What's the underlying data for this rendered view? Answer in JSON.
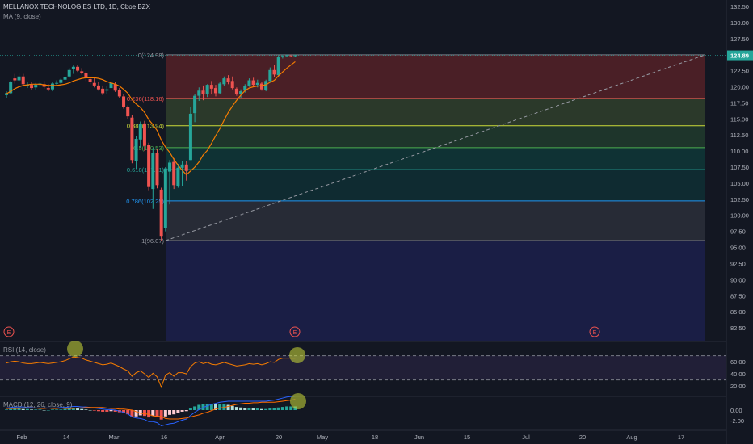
{
  "header": {
    "symbol": "MELLANOX TECHNOLOGIES LTD, 1D, Cboe BZX",
    "indicator": "MA (9, close)"
  },
  "rsi_label": "RSI (14, close)",
  "macd_label": "MACD (12, 26, close, 9)",
  "earnings_marker": "E",
  "colors": {
    "background": "#131722",
    "up": "#26a69a",
    "down": "#ef5350",
    "ma": "#f57c00",
    "rsi_line": "#f57c00",
    "last_price_badge": "#26a69a",
    "highlight": "#cddc39"
  },
  "chart_data": {
    "type": "candlestick",
    "y_axis_ticks": [
      "132.50",
      "130.00",
      "127.50",
      "125.00",
      "122.50",
      "120.00",
      "117.50",
      "115.00",
      "112.50",
      "110.00",
      "107.50",
      "105.00",
      "102.50",
      "100.00",
      "97.50",
      "95.00",
      "92.50",
      "90.00",
      "87.50",
      "85.00",
      "82.50"
    ],
    "y_range": [
      80.5,
      133.5
    ],
    "x_axis_labels": [
      "Feb",
      "14",
      "Mar",
      "16",
      "Apr",
      "20",
      "May",
      "18",
      "Jun",
      "15",
      "Jul",
      "20",
      "Aug",
      "17"
    ],
    "last_price": "124.89",
    "fibonacci": [
      {
        "label": "0(124.98)",
        "value": 124.98
      },
      {
        "label": "0.236(118.16)",
        "value": 118.16
      },
      {
        "label": "0.382(113.94)",
        "value": 113.94
      },
      {
        "label": "0.5(110.53)",
        "value": 110.53
      },
      {
        "label": "0.618(107.11)",
        "value": 107.11
      },
      {
        "label": "0.786(102.25)",
        "value": 102.25
      },
      {
        "label": "1(96.07)",
        "value": 96.07
      }
    ],
    "candles": [
      [
        118.7,
        119.3,
        118.3,
        119.0
      ],
      [
        119.0,
        120.9,
        118.8,
        120.7
      ],
      [
        121.3,
        122.0,
        120.5,
        121.0
      ],
      [
        121.0,
        122.1,
        120.8,
        121.6
      ],
      [
        121.6,
        122.0,
        120.2,
        120.4
      ],
      [
        120.3,
        120.8,
        119.8,
        120.3
      ],
      [
        120.3,
        120.7,
        119.5,
        119.8
      ],
      [
        119.9,
        120.6,
        119.5,
        120.3
      ],
      [
        120.3,
        120.9,
        119.9,
        120.5
      ],
      [
        120.4,
        120.9,
        119.7,
        120.0
      ],
      [
        119.8,
        120.4,
        119.3,
        119.6
      ],
      [
        119.6,
        120.8,
        119.3,
        120.5
      ],
      [
        120.5,
        121.0,
        120.1,
        120.6
      ],
      [
        120.6,
        121.3,
        120.3,
        121.1
      ],
      [
        121.1,
        121.8,
        120.8,
        121.5
      ],
      [
        121.6,
        122.9,
        121.4,
        122.6
      ],
      [
        122.7,
        123.3,
        122.0,
        123.1
      ],
      [
        123.1,
        123.4,
        122.3,
        122.5
      ],
      [
        122.4,
        122.9,
        121.9,
        122.2
      ],
      [
        122.1,
        122.4,
        120.9,
        121.4
      ],
      [
        121.2,
        121.6,
        120.4,
        120.7
      ],
      [
        120.6,
        121.4,
        119.9,
        120.2
      ],
      [
        120.2,
        120.8,
        119.4,
        119.6
      ],
      [
        119.7,
        120.2,
        118.7,
        119.0
      ],
      [
        119.4,
        120.1,
        118.9,
        119.6
      ],
      [
        119.8,
        121.2,
        119.2,
        120.6
      ],
      [
        120.4,
        120.8,
        119.2,
        119.4
      ],
      [
        119.5,
        119.8,
        118.2,
        118.5
      ],
      [
        118.5,
        118.9,
        116.6,
        116.9
      ],
      [
        116.9,
        117.1,
        115.0,
        115.4
      ],
      [
        115.2,
        115.6,
        108.1,
        108.6
      ],
      [
        108.5,
        112.4,
        107.2,
        111.9
      ],
      [
        111.8,
        114.6,
        110.5,
        114.2
      ],
      [
        114.3,
        114.7,
        110.0,
        110.8
      ],
      [
        110.9,
        111.3,
        103.9,
        104.4
      ],
      [
        104.1,
        110.5,
        101.0,
        109.7
      ],
      [
        109.7,
        110.3,
        104.2,
        104.7
      ],
      [
        104.0,
        104.3,
        96.1,
        96.8
      ],
      [
        98.0,
        107.5,
        97.5,
        107.3
      ],
      [
        106.8,
        108.6,
        101.7,
        108.2
      ],
      [
        108.3,
        108.9,
        104.1,
        104.7
      ],
      [
        104.6,
        108.0,
        104.3,
        107.4
      ],
      [
        107.4,
        108.4,
        104.6,
        107.9
      ],
      [
        107.9,
        108.5,
        105.4,
        106.9
      ],
      [
        108.6,
        116.8,
        108.6,
        115.8
      ],
      [
        115.9,
        118.9,
        114.5,
        118.6
      ],
      [
        118.6,
        119.9,
        117.8,
        119.4
      ],
      [
        119.4,
        120.2,
        117.9,
        118.9
      ],
      [
        118.9,
        120.4,
        118.4,
        120.3
      ],
      [
        120.3,
        120.9,
        118.8,
        119.7
      ],
      [
        119.8,
        120.3,
        118.5,
        119.0
      ],
      [
        119.0,
        120.8,
        118.9,
        120.5
      ],
      [
        120.4,
        121.6,
        120.1,
        121.3
      ],
      [
        121.3,
        121.8,
        120.4,
        120.8
      ],
      [
        120.9,
        121.6,
        119.6,
        119.8
      ],
      [
        119.7,
        119.9,
        118.6,
        118.9
      ],
      [
        118.9,
        119.6,
        118.2,
        119.3
      ],
      [
        119.4,
        120.4,
        119.1,
        120.1
      ],
      [
        120.1,
        121.3,
        120.0,
        121.0
      ],
      [
        121.0,
        121.4,
        120.0,
        120.3
      ],
      [
        120.3,
        121.1,
        119.9,
        120.6
      ],
      [
        120.5,
        120.8,
        119.4,
        119.6
      ],
      [
        119.5,
        121.1,
        119.3,
        120.9
      ],
      [
        120.9,
        123.0,
        120.7,
        122.6
      ],
      [
        122.6,
        123.4,
        121.5,
        121.9
      ],
      [
        121.8,
        124.9,
        121.6,
        124.7
      ],
      [
        124.7,
        125.0,
        124.4,
        124.8
      ],
      [
        124.8,
        125.0,
        124.6,
        124.9
      ],
      [
        124.9,
        125.0,
        124.7,
        124.8
      ],
      [
        124.8,
        125.0,
        124.6,
        124.89
      ]
    ],
    "ma9": [
      118.9,
      119.3,
      119.7,
      120.0,
      120.2,
      120.3,
      120.4,
      120.4,
      120.4,
      120.3,
      120.2,
      120.2,
      120.2,
      120.3,
      120.4,
      120.6,
      120.9,
      121.1,
      121.3,
      121.4,
      121.4,
      121.4,
      121.3,
      121.1,
      120.8,
      120.6,
      120.4,
      120.1,
      119.6,
      119.0,
      118.0,
      117.3,
      116.8,
      116.0,
      114.9,
      114.1,
      113.2,
      111.7,
      110.6,
      109.8,
      108.7,
      107.8,
      107.0,
      106.3,
      106.9,
      107.5,
      108.3,
      109.4,
      110.1,
      111.2,
      112.4,
      113.5,
      114.8,
      116.0,
      117.0,
      117.9,
      118.7,
      119.4,
      119.8,
      120.0,
      120.1,
      120.2,
      120.3,
      120.7,
      121.0,
      121.7,
      122.3,
      122.9,
      123.4,
      123.9
    ],
    "rsi": {
      "levels": [
        "60.00",
        "40.00",
        "20.00"
      ],
      "upper_band": 70,
      "lower_band": 30,
      "values": [
        58,
        60,
        61,
        60,
        58,
        57,
        57,
        58,
        59,
        58,
        57,
        58,
        59,
        60,
        62,
        65,
        68,
        67,
        66,
        63,
        61,
        59,
        57,
        55,
        56,
        58,
        55,
        52,
        48,
        45,
        36,
        42,
        45,
        40,
        34,
        41,
        35,
        18,
        38,
        42,
        36,
        42,
        42,
        40,
        52,
        58,
        60,
        57,
        59,
        56,
        55,
        57,
        59,
        57,
        55,
        53,
        54,
        55,
        57,
        56,
        57,
        55,
        57,
        60,
        59,
        64,
        66,
        66,
        66,
        66
      ]
    },
    "macd": {
      "levels": [
        "0.00",
        "-2.00"
      ],
      "histogram": [
        0.1,
        0.2,
        0.3,
        0.3,
        0.2,
        0.2,
        0.1,
        0.1,
        0.1,
        0.0,
        0.0,
        0.1,
        0.1,
        0.1,
        0.2,
        0.3,
        0.4,
        0.3,
        0.2,
        0.1,
        0.0,
        -0.1,
        -0.2,
        -0.3,
        -0.3,
        -0.2,
        -0.3,
        -0.4,
        -0.6,
        -0.8,
        -1.3,
        -1.2,
        -1.0,
        -1.1,
        -1.4,
        -1.1,
        -1.2,
        -1.8,
        -1.2,
        -0.9,
        -0.8,
        -0.5,
        -0.3,
        -0.2,
        0.3,
        0.7,
        1.0,
        1.1,
        1.2,
        1.2,
        1.1,
        1.1,
        1.1,
        1.0,
        0.8,
        0.6,
        0.5,
        0.4,
        0.4,
        0.3,
        0.3,
        0.2,
        0.2,
        0.3,
        0.4,
        0.5,
        0.6,
        0.7,
        0.7,
        0.7
      ],
      "macd_line": [
        0.4,
        0.5,
        0.6,
        0.6,
        0.6,
        0.5,
        0.5,
        0.4,
        0.4,
        0.4,
        0.4,
        0.4,
        0.4,
        0.5,
        0.5,
        0.6,
        0.7,
        0.7,
        0.6,
        0.6,
        0.5,
        0.4,
        0.3,
        0.2,
        0.1,
        0.1,
        0.0,
        -0.2,
        -0.4,
        -0.7,
        -1.3,
        -1.5,
        -1.6,
        -1.8,
        -2.2,
        -2.2,
        -2.4,
        -3.0,
        -2.8,
        -2.6,
        -2.5,
        -2.2,
        -1.9,
        -1.7,
        -1.0,
        -0.4,
        0.1,
        0.5,
        0.8,
        1.1,
        1.3,
        1.5,
        1.6,
        1.7,
        1.7,
        1.7,
        1.7,
        1.7,
        1.7,
        1.7,
        1.7,
        1.7,
        1.7,
        1.8,
        1.9,
        2.1,
        2.3,
        2.5,
        2.6,
        2.7
      ],
      "signal_line": [
        0.3,
        0.3,
        0.3,
        0.3,
        0.4,
        0.4,
        0.4,
        0.4,
        0.3,
        0.3,
        0.4,
        0.3,
        0.3,
        0.4,
        0.3,
        0.3,
        0.3,
        0.4,
        0.4,
        0.5,
        0.5,
        0.5,
        0.5,
        0.5,
        0.4,
        0.3,
        0.3,
        0.2,
        0.2,
        0.1,
        0.0,
        -0.3,
        -0.6,
        -0.7,
        -0.8,
        -1.1,
        -1.2,
        -1.2,
        -1.6,
        -1.7,
        -1.7,
        -1.7,
        -1.6,
        -1.5,
        -1.3,
        -1.1,
        -0.9,
        -0.6,
        -0.4,
        -0.1,
        0.2,
        0.4,
        0.5,
        0.7,
        0.9,
        1.1,
        1.2,
        1.3,
        1.3,
        1.4,
        1.4,
        1.5,
        1.5,
        1.5,
        1.5,
        1.6,
        1.7,
        1.8,
        1.9,
        2.0
      ]
    },
    "trend_line": {
      "from": 96.07,
      "to": 124.98
    },
    "earnings_markers": 3
  }
}
